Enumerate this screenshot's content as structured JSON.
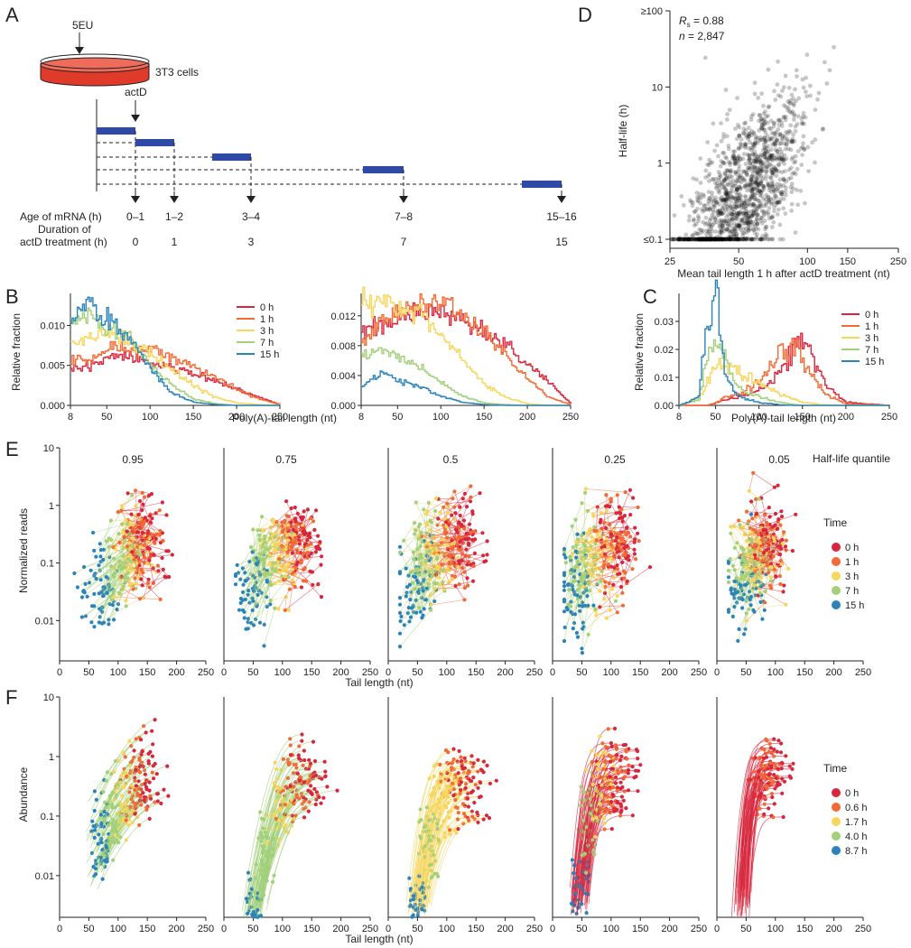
{
  "panel_labels": {
    "A": "A",
    "B": "B",
    "C": "C",
    "D": "D",
    "E": "E",
    "F": "F"
  },
  "panel_a": {
    "reagent_top": "5EU",
    "cells_label": "3T3 cells",
    "reagent_mid": "actD",
    "age_label": "Age of mRNA (h)",
    "duration_label_1": "Duration of",
    "duration_label_2": "actD treatment (h)",
    "ages": [
      "0–1",
      "1–2",
      "3–4",
      "7–8",
      "15–16"
    ],
    "durations": [
      "0",
      "1",
      "3",
      "7",
      "15"
    ],
    "bar_color": "#2f49a6",
    "dish_color": "#e03a2a"
  },
  "colors_time": {
    "0h": "#d7263d",
    "1h": "#f26b36",
    "3h": "#f7d65e",
    "7h": "#a3d07a",
    "15h": "#2b83ba"
  },
  "panel_b": {
    "xlabel": "Poly(A)-tail length (nt)",
    "ylabel": "Relative fraction",
    "legend": [
      "0 h",
      "1 h",
      "3 h",
      "7 h",
      "15 h"
    ],
    "left": {
      "yticks": [
        "0.000",
        "0.005",
        "0.010"
      ],
      "xticks": [
        "8",
        "50",
        "100",
        "150",
        "200",
        "250"
      ]
    },
    "right": {
      "yticks": [
        "0.000",
        "0.004",
        "0.008",
        "0.012"
      ],
      "xticks": [
        "8",
        "50",
        "100",
        "150",
        "200",
        "250"
      ]
    }
  },
  "panel_c": {
    "xlabel": "Poly(A)-tail length (nt)",
    "ylabel": "Relative fraction",
    "legend": [
      "0 h",
      "1 h",
      "3 h",
      "7 h",
      "15 h"
    ],
    "yticks": [
      "0.00",
      "0.01",
      "0.02",
      "0.03"
    ],
    "xticks": [
      "8",
      "50",
      "100",
      "150",
      "200",
      "250"
    ]
  },
  "panel_d": {
    "rs_symbol": "R",
    "rs_sub": "s",
    "rs_value": " = 0.88",
    "n_symbol": "n",
    "n_value": " = 2,847",
    "ylabel": "Half-life (h)",
    "xlabel": "Mean tail length 1 h after actD treatment (nt)",
    "yticks": [
      "≥100",
      "10",
      "1",
      "≤0.1"
    ],
    "xticks": [
      "25",
      "50",
      "100",
      "150",
      "250"
    ]
  },
  "panel_e": {
    "ylabel": "Normalized reads",
    "xlabel": "Tail length (nt)",
    "quantile_title": "Half-life quantile",
    "quantiles": [
      "0.95",
      "0.75",
      "0.5",
      "0.25",
      "0.05"
    ],
    "yticks": [
      "10",
      "1",
      "0.1",
      "0.01"
    ],
    "xticks": [
      "0",
      "50",
      "100",
      "150",
      "200",
      "250"
    ],
    "legend_title": "Time",
    "legend": [
      "0 h",
      "1 h",
      "3 h",
      "7 h",
      "15 h"
    ]
  },
  "panel_f": {
    "ylabel": "Abundance",
    "xlabel": "Tail length (nt)",
    "yticks": [
      "10",
      "1",
      "0.1",
      "0.01"
    ],
    "xticks": [
      "0",
      "50",
      "100",
      "150",
      "200",
      "250"
    ],
    "legend_title": "Time",
    "legend": [
      "0 h",
      "0.6 h",
      "1.7 h",
      "4.0 h",
      "8.7 h"
    ]
  },
  "chart_data": [
    {
      "id": "B-left",
      "type": "line",
      "title": "",
      "xlabel": "Poly(A)-tail length (nt)",
      "ylabel": "Relative fraction",
      "xlim": [
        8,
        250
      ],
      "ylim": [
        0,
        0.014
      ],
      "x": [
        8,
        30,
        50,
        75,
        100,
        125,
        150,
        175,
        200,
        225,
        250
      ],
      "series": [
        {
          "name": "0 h",
          "values": [
            0.0045,
            0.005,
            0.006,
            0.0062,
            0.0055,
            0.0048,
            0.004,
            0.003,
            0.002,
            0.001,
            0.0001
          ]
        },
        {
          "name": "1 h",
          "values": [
            0.0055,
            0.006,
            0.0068,
            0.0072,
            0.0068,
            0.006,
            0.0048,
            0.0035,
            0.002,
            0.0008,
            0.0001
          ]
        },
        {
          "name": "3 h",
          "values": [
            0.0075,
            0.0085,
            0.009,
            0.008,
            0.0065,
            0.0045,
            0.0025,
            0.001,
            0.0003,
            0.0001,
            0.0
          ]
        },
        {
          "name": "7 h",
          "values": [
            0.0105,
            0.0115,
            0.0095,
            0.0085,
            0.005,
            0.0025,
            0.0008,
            0.0002,
            0.0,
            0.0,
            0.0
          ]
        },
        {
          "name": "15 h",
          "values": [
            0.0105,
            0.013,
            0.011,
            0.0085,
            0.0045,
            0.0015,
            0.0004,
            0.0001,
            0.0,
            0.0,
            0.0
          ]
        }
      ]
    },
    {
      "id": "B-right",
      "type": "line",
      "title": "",
      "xlabel": "Poly(A)-tail length (nt)",
      "ylabel": "Relative fraction",
      "xlim": [
        8,
        250
      ],
      "ylim": [
        0,
        0.015
      ],
      "x": [
        8,
        30,
        50,
        75,
        100,
        125,
        150,
        175,
        200,
        225,
        250
      ],
      "series": [
        {
          "name": "0 h",
          "values": [
            0.0095,
            0.0105,
            0.011,
            0.0125,
            0.0125,
            0.0115,
            0.01,
            0.008,
            0.0055,
            0.003,
            0.0002
          ]
        },
        {
          "name": "1 h",
          "values": [
            0.0085,
            0.0115,
            0.0125,
            0.0135,
            0.0135,
            0.012,
            0.0095,
            0.0065,
            0.0035,
            0.001,
            0.0001
          ]
        },
        {
          "name": "3 h",
          "values": [
            0.0135,
            0.0145,
            0.013,
            0.012,
            0.0095,
            0.006,
            0.0028,
            0.001,
            0.0002,
            0.0,
            0.0
          ]
        },
        {
          "name": "7 h",
          "values": [
            0.0065,
            0.0075,
            0.0065,
            0.005,
            0.003,
            0.0012,
            0.0003,
            0.0001,
            0.0,
            0.0,
            0.0
          ]
        },
        {
          "name": "15 h",
          "values": [
            0.0025,
            0.0045,
            0.0035,
            0.0025,
            0.0012,
            0.0004,
            0.0001,
            0.0,
            0.0,
            0.0,
            0.0
          ]
        }
      ]
    },
    {
      "id": "C",
      "type": "line",
      "title": "",
      "xlabel": "Poly(A)-tail length (nt)",
      "ylabel": "Relative fraction",
      "xlim": [
        8,
        250
      ],
      "ylim": [
        0,
        0.04
      ],
      "x": [
        8,
        30,
        40,
        50,
        60,
        75,
        100,
        125,
        140,
        150,
        175,
        200,
        250
      ],
      "series": [
        {
          "name": "0 h",
          "values": [
            0,
            0,
            0,
            0.001,
            0.002,
            0.003,
            0.005,
            0.012,
            0.022,
            0.024,
            0.008,
            0.001,
            0
          ]
        },
        {
          "name": "1 h",
          "values": [
            0,
            0,
            0,
            0.001,
            0.003,
            0.004,
            0.008,
            0.018,
            0.022,
            0.015,
            0.004,
            0.0005,
            0
          ]
        },
        {
          "name": "3 h",
          "values": [
            0,
            0.002,
            0.008,
            0.014,
            0.015,
            0.012,
            0.008,
            0.004,
            0.002,
            0.001,
            0.0002,
            0,
            0
          ]
        },
        {
          "name": "7 h",
          "values": [
            0,
            0.002,
            0.018,
            0.024,
            0.018,
            0.006,
            0.003,
            0.001,
            0.0003,
            0,
            0,
            0,
            0
          ]
        },
        {
          "name": "15 h",
          "values": [
            0,
            0.003,
            0.032,
            0.038,
            0.012,
            0.003,
            0.001,
            0.0002,
            0,
            0,
            0,
            0,
            0
          ]
        }
      ]
    },
    {
      "id": "D",
      "type": "scatter",
      "xlabel": "Mean tail length 1 h after actD treatment (nt)",
      "ylabel": "Half-life (h)",
      "xscale": "log",
      "yscale": "log",
      "xlim": [
        25,
        250
      ],
      "ylim": [
        0.1,
        100
      ],
      "Rs": 0.88,
      "n": 2847
    },
    {
      "id": "E",
      "type": "scatter",
      "xlabel": "Tail length (nt)",
      "ylabel": "Normalized reads",
      "xlim": [
        0,
        250
      ],
      "ylim": [
        0.002,
        10
      ],
      "yscale": "log",
      "facets": [
        0.95,
        0.75,
        0.5,
        0.25,
        0.05
      ],
      "series_centers_tail": {
        "0 h": [
          150,
          135,
          130,
          115,
          90
        ],
        "1 h": [
          140,
          120,
          115,
          105,
          85
        ],
        "3 h": [
          125,
          100,
          90,
          80,
          70
        ],
        "7 h": [
          110,
          75,
          65,
          55,
          55
        ],
        "15 h": [
          70,
          50,
          45,
          40,
          45
        ]
      }
    },
    {
      "id": "F",
      "type": "line",
      "xlabel": "Tail length (nt)",
      "ylabel": "Abundance",
      "xlim": [
        0,
        250
      ],
      "ylim": [
        0.002,
        12
      ],
      "yscale": "log",
      "facets": [
        0.95,
        0.75,
        0.5,
        0.25,
        0.05
      ],
      "series": [
        "0 h",
        "0.6 h",
        "1.7 h",
        "4.0 h",
        "8.7 h"
      ]
    }
  ]
}
